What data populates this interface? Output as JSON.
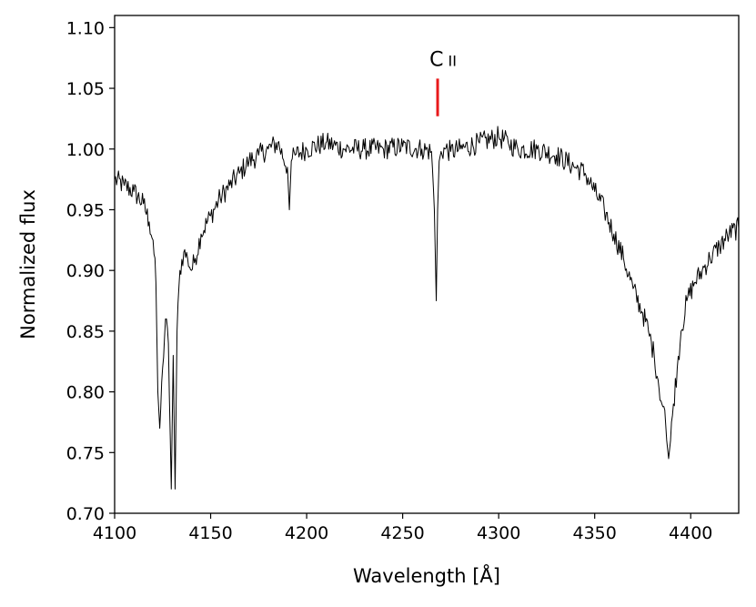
{
  "chart_data": {
    "type": "line",
    "title": "",
    "xlabel": "Wavelength [Å]",
    "ylabel": "Normalized flux",
    "xlim": [
      4100,
      4425
    ],
    "ylim": [
      0.7,
      1.11
    ],
    "xticks": [
      4100,
      4150,
      4200,
      4250,
      4300,
      4350,
      4400
    ],
    "xtick_labels": [
      "4100",
      "4150",
      "4200",
      "4250",
      "4300",
      "4350",
      "4400"
    ],
    "yticks": [
      0.7,
      0.75,
      0.8,
      0.85,
      0.9,
      0.95,
      1.0,
      1.05,
      1.1
    ],
    "ytick_labels": [
      "0.70",
      "0.75",
      "0.80",
      "0.85",
      "0.90",
      "0.95",
      "1.00",
      "1.05",
      "1.10"
    ],
    "grid": false,
    "legend": "none",
    "line_color": "#000000",
    "series": [
      {
        "x": [
          4100,
          4105,
          4110,
          4115,
          4118,
          4120,
          4121.5,
          4122.5,
          4123.5,
          4125,
          4126.5,
          4128,
          4129.5,
          4130.5,
          4131.5,
          4132.5,
          4134,
          4136,
          4138,
          4140,
          4142,
          4145,
          4150,
          4155,
          4160,
          4165,
          4170,
          4175,
          4180,
          4185,
          4190,
          4191,
          4192,
          4194,
          4200,
          4210,
          4220,
          4230,
          4240,
          4250,
          4260,
          4265,
          4266.5,
          4267.5,
          4268.2,
          4269,
          4270,
          4272,
          4275,
          4280,
          4290,
          4300,
          4305,
          4310,
          4320,
          4330,
          4340,
          4345,
          4350,
          4355,
          4360,
          4365,
          4370,
          4375,
          4378,
          4381,
          4383,
          4385,
          4386.5,
          4387.5,
          4388.5,
          4389.5,
          4391,
          4393,
          4395,
          4398,
          4402,
          4406,
          4410,
          4415,
          4420,
          4425
        ],
        "y": [
          0.975,
          0.97,
          0.965,
          0.955,
          0.94,
          0.925,
          0.89,
          0.8,
          0.77,
          0.82,
          0.86,
          0.84,
          0.72,
          0.83,
          0.72,
          0.85,
          0.9,
          0.915,
          0.91,
          0.9,
          0.91,
          0.93,
          0.945,
          0.96,
          0.97,
          0.98,
          0.99,
          0.995,
          1.0,
          1.005,
          0.985,
          0.95,
          0.99,
          0.995,
          1.0,
          1.005,
          1.0,
          1.0,
          1.0,
          1.002,
          1.0,
          0.998,
          0.95,
          0.875,
          0.95,
          0.99,
          0.998,
          1.0,
          0.998,
          1.0,
          1.005,
          1.01,
          1.005,
          1.0,
          1.0,
          0.995,
          0.985,
          0.98,
          0.965,
          0.95,
          0.93,
          0.91,
          0.885,
          0.865,
          0.85,
          0.83,
          0.81,
          0.79,
          0.785,
          0.76,
          0.745,
          0.76,
          0.79,
          0.82,
          0.85,
          0.875,
          0.89,
          0.9,
          0.91,
          0.92,
          0.93,
          0.935
        ]
      }
    ],
    "annotation": {
      "label_main": "C",
      "label_sub": "II",
      "x": 4268.2,
      "y_low": 1.027,
      "y_high": 1.058,
      "color": "#e8191b"
    }
  }
}
